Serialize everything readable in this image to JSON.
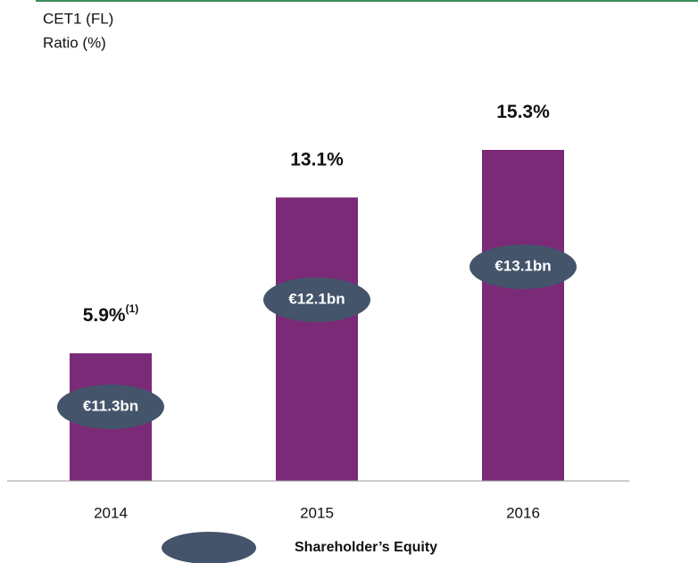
{
  "chart_data": {
    "type": "bar",
    "title": [
      "CET1  (FL)",
      "Ratio (%)"
    ],
    "categories": [
      "2014",
      "2015",
      "2016"
    ],
    "values": [
      5.9,
      13.1,
      15.3
    ],
    "value_labels": [
      "5.9%",
      "13.1%",
      "15.3%"
    ],
    "value_label_superscripts": [
      "(1)",
      null,
      null
    ],
    "color": "#7b2a78",
    "equity": {
      "name": "Shareholder’s Equity",
      "color": "#44546a",
      "values": [
        11.3,
        12.1,
        13.1
      ],
      "value_labels": [
        "€11.3bn",
        "€12.1bn",
        "€13.1bn"
      ]
    }
  }
}
